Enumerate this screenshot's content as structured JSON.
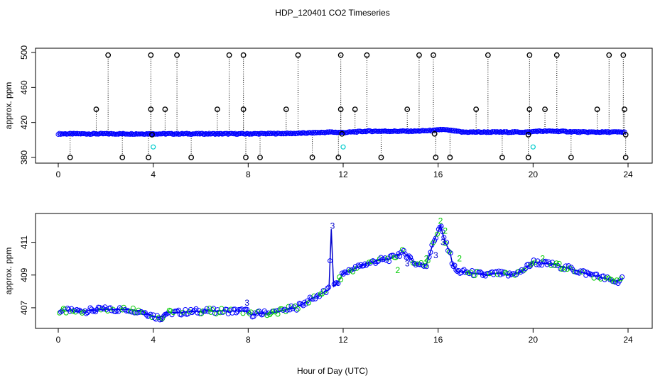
{
  "title": "HDP_120401  CO2 Timeseries",
  "xlabel": "Hour of Day (UTC)",
  "colors": {
    "points": "#0000ff",
    "outliers": "#000000",
    "flagged": "#00cccc",
    "green_marks": "#00cc00",
    "line": "#0000cc"
  },
  "chart_data": [
    {
      "type": "scatter",
      "panel": "top",
      "ylabel": "approx. ppm",
      "xlim": [
        0,
        24
      ],
      "ylim": [
        380,
        500
      ],
      "x_ticks": [
        0,
        4,
        8,
        12,
        16,
        20,
        24
      ],
      "y_ticks": [
        380,
        420,
        460,
        500
      ],
      "baseline": {
        "x": [
          0,
          2,
          4,
          6,
          8,
          10,
          11.5,
          12,
          13,
          14,
          15,
          15.9,
          16.1,
          16.5,
          17,
          18,
          19,
          19.9,
          20.1,
          21,
          22,
          23,
          23.8
        ],
        "y": [
          407,
          407,
          407,
          407,
          407,
          407.5,
          409,
          408.5,
          410,
          410,
          410,
          411,
          412,
          411,
          409,
          409,
          409,
          409,
          410,
          410,
          409,
          409,
          409
        ]
      },
      "outliers": [
        {
          "x": 0.5,
          "y": 380
        },
        {
          "x": 1.6,
          "y": 435
        },
        {
          "x": 2.1,
          "y": 497
        },
        {
          "x": 2.7,
          "y": 380
        },
        {
          "x": 3.8,
          "y": 380
        },
        {
          "x": 3.9,
          "y": 435
        },
        {
          "x": 3.9,
          "y": 497
        },
        {
          "x": 3.95,
          "y": 406
        },
        {
          "x": 4.5,
          "y": 435
        },
        {
          "x": 5.0,
          "y": 497
        },
        {
          "x": 5.6,
          "y": 380
        },
        {
          "x": 6.7,
          "y": 435
        },
        {
          "x": 7.2,
          "y": 497
        },
        {
          "x": 7.8,
          "y": 497
        },
        {
          "x": 7.8,
          "y": 435
        },
        {
          "x": 7.9,
          "y": 380
        },
        {
          "x": 8.5,
          "y": 380
        },
        {
          "x": 9.6,
          "y": 435
        },
        {
          "x": 10.1,
          "y": 497
        },
        {
          "x": 10.7,
          "y": 380
        },
        {
          "x": 11.8,
          "y": 380
        },
        {
          "x": 11.9,
          "y": 435
        },
        {
          "x": 11.9,
          "y": 497
        },
        {
          "x": 11.95,
          "y": 407
        },
        {
          "x": 12.5,
          "y": 435
        },
        {
          "x": 13.0,
          "y": 497
        },
        {
          "x": 13.6,
          "y": 380
        },
        {
          "x": 14.7,
          "y": 435
        },
        {
          "x": 15.2,
          "y": 497
        },
        {
          "x": 15.8,
          "y": 497
        },
        {
          "x": 15.9,
          "y": 380
        },
        {
          "x": 15.85,
          "y": 407
        },
        {
          "x": 16.5,
          "y": 380
        },
        {
          "x": 17.6,
          "y": 435
        },
        {
          "x": 18.1,
          "y": 497
        },
        {
          "x": 18.7,
          "y": 380
        },
        {
          "x": 19.8,
          "y": 380
        },
        {
          "x": 19.85,
          "y": 435
        },
        {
          "x": 19.85,
          "y": 497
        },
        {
          "x": 19.8,
          "y": 406
        },
        {
          "x": 20.5,
          "y": 435
        },
        {
          "x": 21.0,
          "y": 497
        },
        {
          "x": 21.6,
          "y": 380
        },
        {
          "x": 22.7,
          "y": 435
        },
        {
          "x": 23.2,
          "y": 497
        },
        {
          "x": 23.8,
          "y": 497
        },
        {
          "x": 23.85,
          "y": 435
        },
        {
          "x": 23.9,
          "y": 380
        },
        {
          "x": 23.9,
          "y": 406
        }
      ],
      "flagged": [
        {
          "x": 4.0,
          "y": 392
        },
        {
          "x": 12.0,
          "y": 392
        },
        {
          "x": 20.0,
          "y": 392
        }
      ]
    },
    {
      "type": "scatter",
      "panel": "bottom",
      "ylabel": "approx. ppm",
      "xlim": [
        0,
        24
      ],
      "ylim": [
        406,
        412.5
      ],
      "x_ticks": [
        0,
        4,
        8,
        12,
        16,
        20,
        24
      ],
      "y_ticks": [
        407,
        409,
        411
      ],
      "series": {
        "x": [
          0,
          1,
          2,
          3,
          3.5,
          4,
          4.3,
          4.6,
          5,
          6,
          7,
          7.9,
          8.1,
          9,
          10,
          10.5,
          11,
          11.4,
          11.5,
          11.6,
          11.8,
          12,
          12.5,
          13,
          13.5,
          14,
          14.5,
          14.8,
          15,
          15.5,
          15.8,
          16.1,
          16.3,
          16.5,
          16.6,
          16.8,
          17,
          17.5,
          18,
          18.5,
          19,
          19.5,
          20,
          20.5,
          21,
          21.5,
          22,
          22.5,
          23,
          23.5,
          23.8
        ],
        "y": [
          406.8,
          406.8,
          406.9,
          406.9,
          406.8,
          406.5,
          406.4,
          406.7,
          406.7,
          406.8,
          406.8,
          406.8,
          406.6,
          406.7,
          407.0,
          407.4,
          407.8,
          408.1,
          411.8,
          408.3,
          408.6,
          409.1,
          409.4,
          409.7,
          409.9,
          410.0,
          410.4,
          410.1,
          409.7,
          409.6,
          411.0,
          412.0,
          411.0,
          410.4,
          409.7,
          409.2,
          409.2,
          409.1,
          409.0,
          409.1,
          409.0,
          409.2,
          409.8,
          409.7,
          409.6,
          409.4,
          409.2,
          409.0,
          408.8,
          408.6,
          408.8
        ]
      },
      "labeled_marks": [
        {
          "label": "3",
          "x": 11.55,
          "y": 412.0
        },
        {
          "label": "3",
          "x": 7.95,
          "y": 407.3
        },
        {
          "label": "3",
          "x": 4.35,
          "y": 406.3
        },
        {
          "label": "3",
          "x": 14.7,
          "y": 409.7
        },
        {
          "label": "3",
          "x": 15.9,
          "y": 410.2
        },
        {
          "label": "3",
          "x": 16.2,
          "y": 411.0
        },
        {
          "label": "3",
          "x": 19.9,
          "y": 409.6
        },
        {
          "label": "2",
          "x": 16.1,
          "y": 412.3
        },
        {
          "label": "2",
          "x": 16.3,
          "y": 411.7
        },
        {
          "label": "2",
          "x": 16.9,
          "y": 410.0
        },
        {
          "label": "2",
          "x": 15.5,
          "y": 410.0
        },
        {
          "label": "2",
          "x": 20.4,
          "y": 410.0
        },
        {
          "label": "2",
          "x": 14.3,
          "y": 409.3
        }
      ]
    }
  ]
}
